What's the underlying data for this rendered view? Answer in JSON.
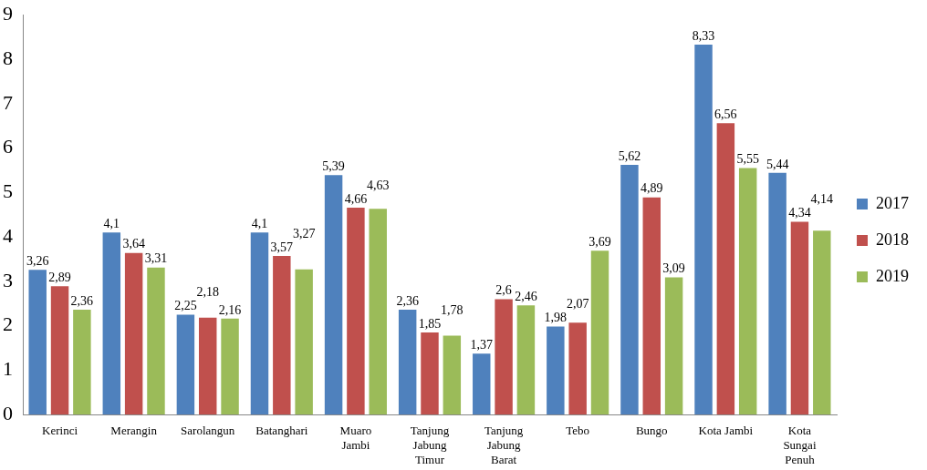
{
  "chart_data": {
    "type": "bar",
    "categories": [
      "Kerinci",
      "Merangin",
      "Sarolangun",
      "Batanghari",
      "Muaro Jambi",
      "Tanjung Jabung Timur",
      "Tanjung Jabung Barat",
      "Tebo",
      "Bungo",
      "Kota Jambi",
      "Kota Sungai Penuh"
    ],
    "series": [
      {
        "name": "2017",
        "color": "#4f81bd",
        "values": [
          3.26,
          4.1,
          2.25,
          4.1,
          5.39,
          2.36,
          1.37,
          1.98,
          5.62,
          8.33,
          5.44
        ],
        "value_labels": [
          "3,26",
          "4,1",
          "2,25",
          "4,1",
          "5,39",
          "2,36",
          "1,37",
          "1,98",
          "5,62",
          "8,33",
          "5,44"
        ]
      },
      {
        "name": "2018",
        "color": "#c0504d",
        "values": [
          2.89,
          3.64,
          2.18,
          3.57,
          4.66,
          1.85,
          2.6,
          2.07,
          4.89,
          6.56,
          4.34
        ],
        "value_labels": [
          "2,89",
          "3,64",
          "2,18",
          "3,57",
          "4,66",
          "1,85",
          "2,6",
          "2,07",
          "4,89",
          "6,56",
          "4,34"
        ]
      },
      {
        "name": "2019",
        "color": "#9bbb59",
        "values": [
          2.36,
          3.31,
          2.16,
          3.27,
          4.63,
          1.78,
          2.46,
          3.69,
          3.09,
          5.55,
          4.14
        ],
        "value_labels": [
          "2,36",
          "3,31",
          "2,16",
          "3,27",
          "4,63",
          "1,78",
          "2,46",
          "3,69",
          "3,09",
          "5,55",
          "4,14"
        ]
      }
    ],
    "ylim": [
      0,
      9
    ],
    "yticks": [
      0,
      1,
      2,
      3,
      4,
      5,
      6,
      7,
      8,
      9
    ],
    "grid": false,
    "legend": "right"
  }
}
